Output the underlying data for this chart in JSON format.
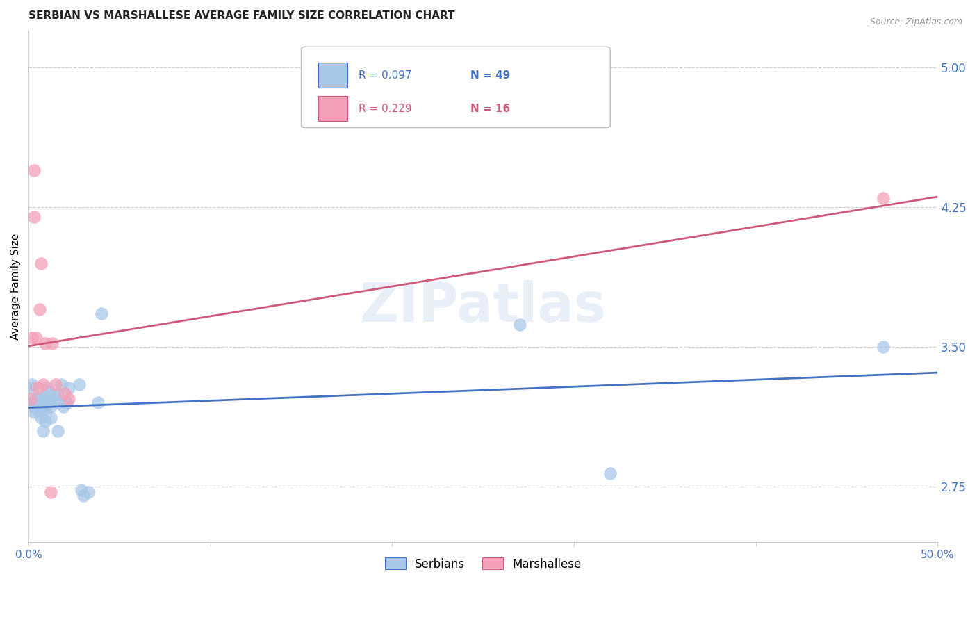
{
  "title": "SERBIAN VS MARSHALLESE AVERAGE FAMILY SIZE CORRELATION CHART",
  "source": "Source: ZipAtlas.com",
  "ylabel": "Average Family Size",
  "yticks": [
    2.75,
    3.5,
    4.25,
    5.0
  ],
  "xlim": [
    0.0,
    0.5
  ],
  "ylim": [
    2.45,
    5.2
  ],
  "watermark": "ZIPatlas",
  "legend_serbian": "Serbians",
  "legend_marshallese": "Marshallese",
  "legend_r_serbian": "0.097",
  "legend_n_serbian": "49",
  "legend_r_marshallese": "0.229",
  "legend_n_marshallese": "16",
  "serbian_color": "#a8c8e8",
  "marshallese_color": "#f4a0b8",
  "serbian_line_color": "#4472c4",
  "marshallese_line_color": "#d05878",
  "title_color": "#222222",
  "axis_tick_color": "#4472c4",
  "grid_color": "#cccccc",
  "xtick_positions": [
    0.0,
    0.1,
    0.2,
    0.3,
    0.4,
    0.5
  ],
  "xtick_labels": [
    "0.0%",
    "",
    "",
    "",
    "",
    "50.0%"
  ],
  "serbian_x": [
    0.001,
    0.002,
    0.002,
    0.003,
    0.003,
    0.003,
    0.004,
    0.004,
    0.005,
    0.005,
    0.005,
    0.005,
    0.006,
    0.006,
    0.007,
    0.007,
    0.007,
    0.008,
    0.008,
    0.008,
    0.008,
    0.009,
    0.009,
    0.009,
    0.01,
    0.01,
    0.011,
    0.012,
    0.012,
    0.013,
    0.014,
    0.015,
    0.016,
    0.016,
    0.018,
    0.019,
    0.02,
    0.021,
    0.021,
    0.022,
    0.028,
    0.029,
    0.03,
    0.033,
    0.038,
    0.04,
    0.27,
    0.32,
    0.47
  ],
  "serbian_y": [
    3.2,
    3.3,
    3.28,
    3.2,
    3.18,
    3.15,
    3.22,
    3.18,
    3.22,
    3.2,
    3.18,
    3.16,
    3.23,
    3.2,
    3.15,
    3.12,
    3.18,
    3.22,
    3.2,
    3.05,
    3.18,
    3.2,
    3.17,
    3.1,
    3.28,
    3.2,
    3.26,
    3.18,
    3.12,
    3.22,
    3.24,
    3.22,
    3.25,
    3.05,
    3.3,
    3.18,
    3.2,
    3.2,
    3.2,
    3.28,
    3.3,
    2.73,
    2.7,
    2.72,
    3.2,
    3.68,
    3.62,
    2.82,
    3.5
  ],
  "marshallese_x": [
    0.001,
    0.002,
    0.003,
    0.003,
    0.004,
    0.005,
    0.006,
    0.007,
    0.008,
    0.009,
    0.012,
    0.013,
    0.015,
    0.02,
    0.022,
    0.47
  ],
  "marshallese_y": [
    3.22,
    3.55,
    4.45,
    4.2,
    3.55,
    3.28,
    3.7,
    3.95,
    3.3,
    3.52,
    2.72,
    3.52,
    3.3,
    3.25,
    3.22,
    4.3
  ]
}
